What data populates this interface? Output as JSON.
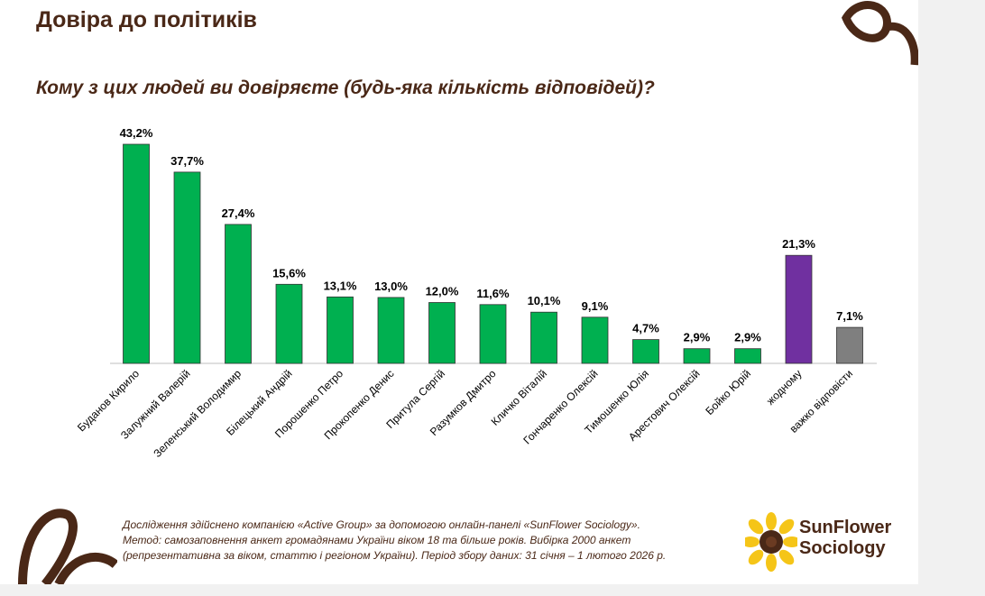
{
  "page": {
    "title": "Довіра до політиків",
    "question": "Кому з цих людей ви довіряєте (будь-яка кількість відповідей)?"
  },
  "chart_data": {
    "type": "bar",
    "title": "Кому з цих людей ви довіряєте (будь-яка кількість відповідей)?",
    "xlabel": "",
    "ylabel": "",
    "ylim": [
      0,
      45
    ],
    "grid": false,
    "categories": [
      "Буданов Кирило",
      "Залужний Валерій",
      "Зеленський Володимир",
      "Білецький Андрій",
      "Порошенко Петро",
      "Прокопенко Денис",
      "Притула Сергій",
      "Разумков Дмитро",
      "Кличко Віталій",
      "Гончаренко Олексій",
      "Тимошенко Юлія",
      "Арестович Олексій",
      "Бойко Юрій",
      "жодному",
      "важко відповісти"
    ],
    "values": [
      43.2,
      37.7,
      27.4,
      15.6,
      13.1,
      13.0,
      12.0,
      11.6,
      10.1,
      9.1,
      4.7,
      2.9,
      2.9,
      21.3,
      7.1
    ],
    "value_labels": [
      "43,2%",
      "37,7%",
      "27,4%",
      "15,6%",
      "13,1%",
      "13,0%",
      "12,0%",
      "11,6%",
      "10,1%",
      "9,1%",
      "4,7%",
      "2,9%",
      "2,9%",
      "21,3%",
      "7,1%"
    ],
    "colors": [
      "#00b050",
      "#00b050",
      "#00b050",
      "#00b050",
      "#00b050",
      "#00b050",
      "#00b050",
      "#00b050",
      "#00b050",
      "#00b050",
      "#00b050",
      "#00b050",
      "#00b050",
      "#7030a0",
      "#7f7f7f"
    ]
  },
  "footer": {
    "line1": "Дослідження здійснено компанією «Active Group» за допомогою онлайн-панелі «SunFlower Sociology».",
    "line2": "Метод: самозаповнення анкет громадянами України віком 18 та більше років. Вибірка 2000 анкет",
    "line3": "(репрезентативна за віком, статтю і регіоном України). Період збору даних: 31 січня – 1 лютого 2026 р."
  },
  "logo": {
    "line1": "SunFlower",
    "line2": "Sociology"
  },
  "theme": {
    "brown": "#4a2817",
    "logo_yellow": "#f5c518"
  }
}
